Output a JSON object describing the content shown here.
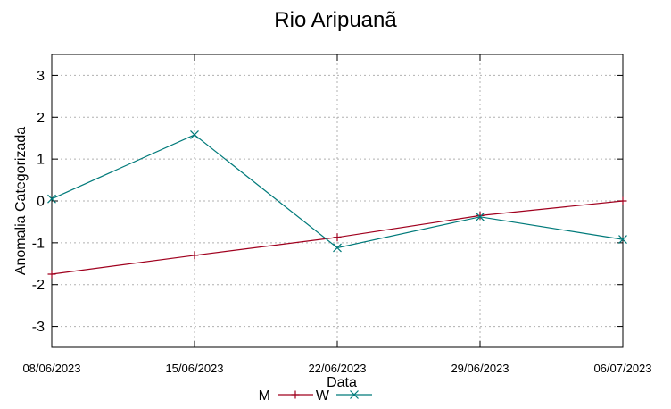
{
  "chart_data": {
    "type": "line",
    "title": "Rio Aripuanã",
    "xlabel": "Data",
    "ylabel": "Anomalia Categorizada",
    "categories": [
      "08/06/2023",
      "15/06/2023",
      "22/06/2023",
      "29/06/2023",
      "06/07/2023"
    ],
    "yticks": [
      -3,
      -2,
      -1,
      0,
      1,
      2,
      3
    ],
    "ylim": [
      -3.5,
      3.5
    ],
    "grid": true,
    "legend_position": "bottom",
    "series": [
      {
        "name": "M",
        "color": "#a0001e",
        "marker": "plus",
        "values": [
          -1.75,
          -1.3,
          -0.87,
          -0.35,
          0.0
        ]
      },
      {
        "name": "W",
        "color": "#007a7a",
        "marker": "cross",
        "values": [
          0.05,
          1.58,
          -1.12,
          -0.38,
          -0.92
        ]
      }
    ]
  }
}
